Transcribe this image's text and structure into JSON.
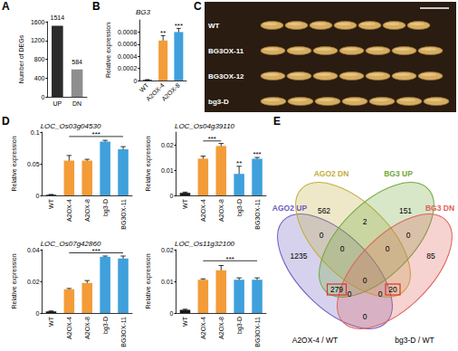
{
  "panel_labels": [
    "A",
    "B",
    "C",
    "D",
    "E"
  ],
  "chart_data": [
    {
      "type": "bar",
      "categories": [
        "UP",
        "DN"
      ],
      "values": [
        1514,
        584
      ],
      "colors": [
        "#2b2b2b",
        "#8e8e8e"
      ],
      "y_label": "Number of DEGs",
      "ylim": [
        0,
        1600
      ],
      "yticks": [
        0,
        400,
        800,
        1200,
        1600
      ],
      "data_labels": true,
      "grid": false
    },
    {
      "type": "bar",
      "title": "BG3",
      "categories": [
        "WT",
        "A2OX-4",
        "A2OX-8"
      ],
      "values": [
        1e-05,
        0.00066,
        0.0008
      ],
      "errors": [
        5e-06,
        8e-05,
        6e-05
      ],
      "colors": [
        "#1a1a1a",
        "#f39c38",
        "#3fa0dc"
      ],
      "y_label": "Relative expression",
      "ylim": [
        0,
        0.001
      ],
      "yticks": [
        0,
        0.0002,
        0.0004,
        0.0006,
        0.0008
      ],
      "grid": false,
      "annotations": [
        {
          "text": "**",
          "from": "A2OX-4",
          "to": "A2OX-4",
          "y": 0.00076
        },
        {
          "text": "***",
          "from": "A2OX-8",
          "to": "A2OX-8",
          "y": 0.00088
        }
      ]
    },
    {
      "type": "bar",
      "title": "LOC_Os03g04530",
      "categories": [
        "WT",
        "A2OX-4",
        "A2OX-8",
        "bg3-D",
        "BG3OX-11"
      ],
      "values": [
        0.001,
        0.055,
        0.055,
        0.085,
        0.073
      ],
      "errors": [
        0.0005,
        0.008,
        0.002,
        0.002,
        0.004
      ],
      "colors": [
        "#1a1a1a",
        "#f39c38",
        "#f39c38",
        "#3fa0dc",
        "#3fa0dc"
      ],
      "y_label": "Relative expression",
      "ylim": [
        0,
        0.1
      ],
      "yticks": [
        0,
        0.05,
        0.1
      ],
      "grid": false,
      "annotations": [
        {
          "text": "***",
          "from": "A2OX-4",
          "to": "BG3OX-11",
          "y": 0.093
        }
      ]
    },
    {
      "type": "bar",
      "title": "LOC_Os04g39110",
      "categories": [
        "WT",
        "A2OX-4",
        "A2OX-8",
        "bg3-D",
        "BG3OX-11"
      ],
      "values": [
        0.001,
        0.0145,
        0.0195,
        0.0085,
        0.0145
      ],
      "errors": [
        0.0003,
        0.001,
        0.001,
        0.003,
        0.0005
      ],
      "colors": [
        "#1a1a1a",
        "#f39c38",
        "#f39c38",
        "#3fa0dc",
        "#3fa0dc"
      ],
      "y_label": "Relative expression",
      "ylim": [
        0,
        0.025
      ],
      "yticks": [
        0,
        0.01,
        0.02
      ],
      "grid": false,
      "annotations": [
        {
          "text": "***",
          "from": "A2OX-4",
          "to": "A2OX-8",
          "y": 0.0215
        },
        {
          "text": "**",
          "from": "bg3-D",
          "to": "bg3-D",
          "y": 0.012
        },
        {
          "text": "***",
          "from": "BG3OX-11",
          "to": "BG3OX-11",
          "y": 0.0155
        }
      ]
    },
    {
      "type": "bar",
      "title": "LOC_Os07g42860",
      "categories": [
        "WT",
        "A2OX-4",
        "A2OX-8",
        "bg3-D",
        "BG3OX-11"
      ],
      "values": [
        0.001,
        0.015,
        0.019,
        0.0355,
        0.0345
      ],
      "errors": [
        0.0003,
        0.0005,
        0.0015,
        0.0005,
        0.0015
      ],
      "colors": [
        "#1a1a1a",
        "#f39c38",
        "#f39c38",
        "#3fa0dc",
        "#3fa0dc"
      ],
      "y_label": "Relative expression",
      "ylim": [
        0,
        0.04
      ],
      "yticks": [
        0,
        0.02,
        0.04
      ],
      "grid": false,
      "annotations": [
        {
          "text": "***",
          "from": "A2OX-4",
          "to": "BG3OX-11",
          "y": 0.038
        }
      ]
    },
    {
      "type": "bar",
      "title": "LOC_Os11g32100",
      "categories": [
        "WT",
        "A2OX-4",
        "A2OX-8",
        "bg3-D",
        "BG3OX-11"
      ],
      "values": [
        0.001,
        0.0105,
        0.0135,
        0.0105,
        0.0105
      ],
      "errors": [
        0.0002,
        0.0003,
        0.0015,
        0.0006,
        0.0006
      ],
      "colors": [
        "#1a1a1a",
        "#f39c38",
        "#f39c38",
        "#3fa0dc",
        "#3fa0dc"
      ],
      "y_label": "Relative expression",
      "ylim": [
        0,
        0.02
      ],
      "yticks": [
        0,
        0.01,
        0.02
      ],
      "grid": false,
      "annotations": [
        {
          "text": "***",
          "from": "A2OX-4",
          "to": "BG3OX-11",
          "y": 0.0165
        }
      ]
    }
  ],
  "photo": {
    "rows": [
      "WT",
      "BG3OX-11",
      "BG3OX-12",
      "bg3-D"
    ]
  },
  "venn": {
    "sets": [
      {
        "name": "AGO2 UP",
        "color": "#6a5cc0"
      },
      {
        "name": "AGO2 DN",
        "color": "#c2ae3c"
      },
      {
        "name": "BG3 UP",
        "color": "#6fa83a"
      },
      {
        "name": "BG3 DN",
        "color": "#e0605a"
      }
    ],
    "regions": [
      {
        "sets": [
          "AGO2 UP"
        ],
        "value": 1235
      },
      {
        "sets": [
          "AGO2 DN"
        ],
        "value": 562
      },
      {
        "sets": [
          "BG3 UP"
        ],
        "value": 151
      },
      {
        "sets": [
          "BG3 DN"
        ],
        "value": 85
      },
      {
        "sets": [
          "AGO2 UP",
          "AGO2 DN"
        ],
        "value": 0
      },
      {
        "sets": [
          "AGO2 DN",
          "BG3 UP"
        ],
        "value": 2
      },
      {
        "sets": [
          "BG3 UP",
          "BG3 DN"
        ],
        "value": 0
      },
      {
        "sets": [
          "AGO2 UP",
          "BG3 UP"
        ],
        "value": 279,
        "boxed": true
      },
      {
        "sets": [
          "AGO2 DN",
          "BG3 DN"
        ],
        "value": 20,
        "boxed": true
      },
      {
        "sets": [
          "AGO2 UP",
          "BG3 DN"
        ],
        "value": 0
      },
      {
        "sets": [
          "AGO2 UP",
          "AGO2 DN",
          "BG3 UP"
        ],
        "value": 0
      },
      {
        "sets": [
          "AGO2 DN",
          "BG3 UP",
          "BG3 DN"
        ],
        "value": 0
      },
      {
        "sets": [
          "AGO2 UP",
          "AGO2 DN",
          "BG3 DN"
        ],
        "value": 0
      },
      {
        "sets": [
          "AGO2 UP",
          "BG3 UP",
          "BG3 DN"
        ],
        "value": 0
      },
      {
        "sets": [
          "AGO2 UP",
          "AGO2 DN",
          "BG3 UP",
          "BG3 DN"
        ],
        "value": 0
      }
    ],
    "comparisons": [
      "A2OX-4 / WT",
      "bg3-D / WT"
    ]
  }
}
